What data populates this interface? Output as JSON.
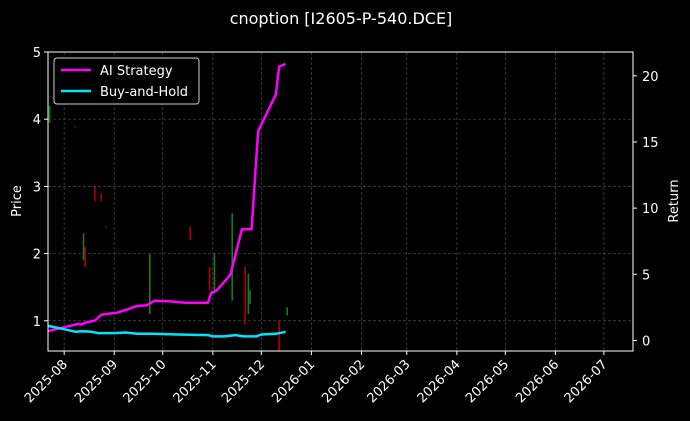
{
  "chart_data": {
    "type": "line",
    "title": "cnoption [I2605-P-540.DCE]",
    "ylabel_left": "Price",
    "ylabel_right": "Return",
    "x_ticks": [
      "2025-08",
      "2025-09",
      "2025-10",
      "2025-11",
      "2025-12",
      "2026-01",
      "2026-02",
      "2026-03",
      "2026-04",
      "2026-05",
      "2026-06",
      "2026-07"
    ],
    "xlim": [
      "2025-07-22",
      "2026-07-19"
    ],
    "ylim_left": [
      0.55,
      5.0
    ],
    "ylim_right": [
      -0.8,
      21.8
    ],
    "y_ticks_left": [
      1,
      2,
      3,
      4,
      5
    ],
    "y_ticks_right": [
      0,
      5,
      10,
      15,
      20
    ],
    "grid": true,
    "legend_position": "top-left",
    "series": [
      {
        "name": "AI Strategy",
        "color": "#ff00ff",
        "axis": "right",
        "points": [
          [
            "2025-07-22",
            0.7
          ],
          [
            "2025-08-01",
            1.0
          ],
          [
            "2025-08-10",
            1.25
          ],
          [
            "2025-08-12",
            1.2
          ],
          [
            "2025-08-14",
            1.35
          ],
          [
            "2025-08-20",
            1.5
          ],
          [
            "2025-08-24",
            1.95
          ],
          [
            "2025-09-03",
            2.1
          ],
          [
            "2025-09-08",
            2.3
          ],
          [
            "2025-09-15",
            2.6
          ],
          [
            "2025-09-21",
            2.65
          ],
          [
            "2025-09-26",
            3.0
          ],
          [
            "2025-10-05",
            2.95
          ],
          [
            "2025-10-15",
            2.85
          ],
          [
            "2025-10-25",
            2.85
          ],
          [
            "2025-10-29",
            2.85
          ],
          [
            "2025-10-31",
            3.6
          ],
          [
            "2025-11-03",
            3.75
          ],
          [
            "2025-11-08",
            4.4
          ],
          [
            "2025-11-12",
            5.0
          ],
          [
            "2025-11-15",
            6.5
          ],
          [
            "2025-11-19",
            8.4
          ],
          [
            "2025-11-25",
            8.4
          ],
          [
            "2025-11-29",
            15.8
          ],
          [
            "2025-12-10",
            18.6
          ],
          [
            "2025-12-12",
            20.7
          ],
          [
            "2025-12-16",
            20.9
          ]
        ]
      },
      {
        "name": "Buy-and-Hold",
        "color": "#00e5ff",
        "axis": "right",
        "points": [
          [
            "2025-07-22",
            1.1
          ],
          [
            "2025-08-01",
            0.85
          ],
          [
            "2025-08-08",
            0.65
          ],
          [
            "2025-08-12",
            0.7
          ],
          [
            "2025-08-18",
            0.65
          ],
          [
            "2025-08-22",
            0.55
          ],
          [
            "2025-09-01",
            0.55
          ],
          [
            "2025-09-08",
            0.6
          ],
          [
            "2025-09-15",
            0.5
          ],
          [
            "2025-09-25",
            0.5
          ],
          [
            "2025-10-10",
            0.45
          ],
          [
            "2025-10-29",
            0.4
          ],
          [
            "2025-11-01",
            0.3
          ],
          [
            "2025-11-08",
            0.3
          ],
          [
            "2025-11-15",
            0.4
          ],
          [
            "2025-11-20",
            0.3
          ],
          [
            "2025-11-28",
            0.3
          ],
          [
            "2025-12-01",
            0.45
          ],
          [
            "2025-12-10",
            0.5
          ],
          [
            "2025-12-16",
            0.65
          ]
        ]
      }
    ],
    "price_bars": [
      {
        "date": "2025-07-23",
        "low": 3.95,
        "high": 4.2,
        "color": "#1c7a1c"
      },
      {
        "date": "2025-08-08",
        "low": 3.88,
        "high": 3.9,
        "color": "#b00000"
      },
      {
        "date": "2025-08-14",
        "low": 1.8,
        "high": 2.1,
        "color": "#b00000"
      },
      {
        "date": "2025-08-13",
        "low": 1.9,
        "high": 2.3,
        "color": "#1c7a1c"
      },
      {
        "date": "2025-08-20",
        "low": 2.78,
        "high": 3.0,
        "color": "#b00000"
      },
      {
        "date": "2025-08-24",
        "low": 2.78,
        "high": 2.9,
        "color": "#b00000"
      },
      {
        "date": "2025-08-27",
        "low": 2.38,
        "high": 2.4,
        "color": "#b00000"
      },
      {
        "date": "2025-09-23",
        "low": 1.1,
        "high": 2.0,
        "color": "#1c7a1c"
      },
      {
        "date": "2025-10-18",
        "low": 2.2,
        "high": 2.4,
        "color": "#b00000"
      },
      {
        "date": "2025-10-30",
        "low": 1.45,
        "high": 1.8,
        "color": "#b00000"
      },
      {
        "date": "2025-11-02",
        "low": 1.4,
        "high": 2.0,
        "color": "#1c7a1c"
      },
      {
        "date": "2025-11-13",
        "low": 1.3,
        "high": 2.6,
        "color": "#1c7a1c"
      },
      {
        "date": "2025-11-21",
        "low": 0.95,
        "high": 1.8,
        "color": "#b00000"
      },
      {
        "date": "2025-11-23",
        "low": 1.1,
        "high": 1.7,
        "color": "#1c7a1c"
      },
      {
        "date": "2025-11-24",
        "low": 1.25,
        "high": 1.45,
        "color": "#1c7a1c"
      },
      {
        "date": "2025-12-12",
        "low": 0.55,
        "high": 1.0,
        "color": "#b00000"
      },
      {
        "date": "2025-12-17",
        "low": 1.08,
        "high": 1.2,
        "color": "#1c7a1c"
      }
    ]
  }
}
